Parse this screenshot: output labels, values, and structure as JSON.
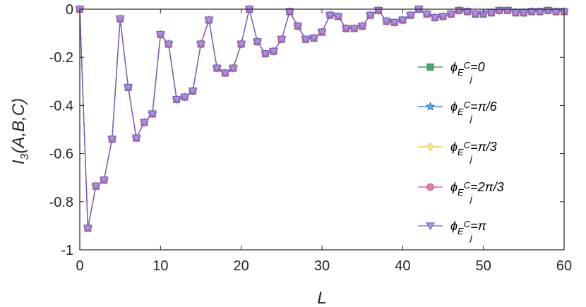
{
  "chart_data": {
    "type": "line",
    "xlabel": "L",
    "ylabel_main": "I",
    "ylabel_sub": "3",
    "ylabel_tail": "(A,B,C)",
    "xlim": [
      0,
      60
    ],
    "ylim": [
      -1,
      0
    ],
    "xticks": [
      0,
      10,
      20,
      30,
      40,
      50,
      60
    ],
    "yticks": [
      0,
      -0.2,
      -0.4,
      -0.6,
      -0.8,
      -1
    ],
    "ytick_labels": [
      "0",
      "-0.2",
      "-0.4",
      "-0.6",
      "-0.8",
      "-1"
    ],
    "grid": false,
    "legend_position": "right",
    "x": [
      0,
      1,
      2,
      3,
      4,
      5,
      6,
      7,
      8,
      9,
      10,
      11,
      12,
      13,
      14,
      15,
      16,
      17,
      18,
      19,
      20,
      21,
      22,
      23,
      24,
      25,
      26,
      27,
      28,
      29,
      30,
      31,
      32,
      33,
      34,
      35,
      36,
      37,
      38,
      39,
      40,
      41,
      42,
      43,
      44,
      45,
      46,
      47,
      48,
      49,
      50,
      51,
      52,
      53,
      54,
      55,
      56,
      57,
      58,
      59,
      60
    ],
    "y": [
      0,
      -0.91,
      -0.735,
      -0.71,
      -0.54,
      -0.04,
      -0.325,
      -0.535,
      -0.47,
      -0.435,
      -0.105,
      -0.145,
      -0.375,
      -0.365,
      -0.34,
      -0.145,
      -0.045,
      -0.245,
      -0.265,
      -0.245,
      -0.145,
      0,
      -0.135,
      -0.185,
      -0.175,
      -0.125,
      -0.01,
      -0.07,
      -0.125,
      -0.12,
      -0.095,
      -0.025,
      -0.03,
      -0.08,
      -0.08,
      -0.07,
      -0.025,
      -0.005,
      -0.05,
      -0.055,
      -0.045,
      -0.025,
      0,
      -0.02,
      -0.035,
      -0.03,
      -0.02,
      -0.005,
      -0.01,
      -0.02,
      -0.02,
      -0.015,
      -0.005,
      -0.005,
      -0.015,
      -0.015,
      -0.01,
      -0.01,
      -0.005,
      -0.01,
      -0.01
    ],
    "series": [
      {
        "label_base": "ϕ",
        "label_sub_letter": "E",
        "label_sub_index": "j",
        "label_sup": "C",
        "label_value": "=0",
        "color": "#2e8b57",
        "fill": "#4aa878",
        "marker": "square"
      },
      {
        "label_base": "ϕ",
        "label_sub_letter": "E",
        "label_sub_index": "j",
        "label_sup": "C",
        "label_value": "=π/6",
        "color": "#1f6fbf",
        "fill": "#5ab0e8",
        "marker": "star"
      },
      {
        "label_base": "ϕ",
        "label_sub_letter": "E",
        "label_sub_index": "j",
        "label_sup": "C",
        "label_value": "=π/3",
        "color": "#e8c53a",
        "fill": "#fbe58a",
        "marker": "diamond"
      },
      {
        "label_base": "ϕ",
        "label_sub_letter": "E",
        "label_sub_index": "j",
        "label_sup": "C",
        "label_value": "=2π/3",
        "color": "#d94f7a",
        "fill": "#f07aa0",
        "marker": "circle"
      },
      {
        "label_base": "ϕ",
        "label_sub_letter": "E",
        "label_sub_index": "j",
        "label_sup": "C",
        "label_value": "=π",
        "color": "#7b5cc4",
        "fill": "#a890e8",
        "marker": "triangle-down"
      }
    ]
  }
}
